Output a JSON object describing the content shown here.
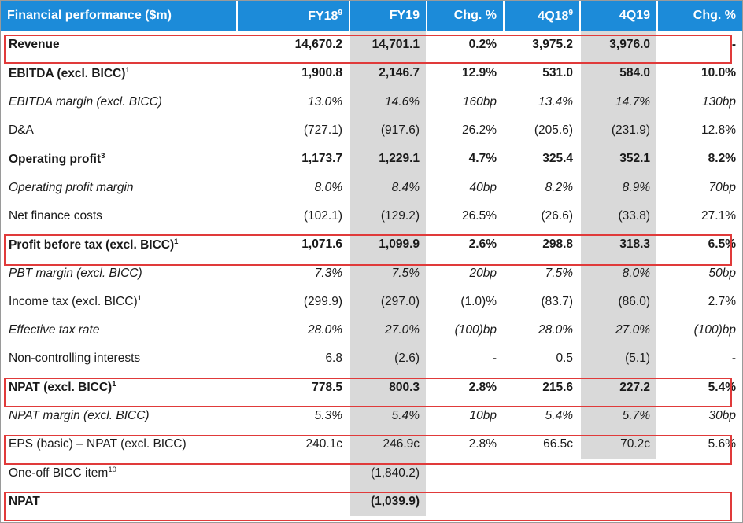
{
  "header": {
    "title": "Financial performance ($m)",
    "cols": [
      {
        "label": "FY18",
        "sup": "9"
      },
      {
        "label": "FY19",
        "sup": ""
      },
      {
        "label": "Chg. %",
        "sup": ""
      },
      {
        "label": "4Q18",
        "sup": "9"
      },
      {
        "label": "4Q19",
        "sup": ""
      },
      {
        "label": "Chg. %",
        "sup": ""
      }
    ]
  },
  "rows": [
    {
      "label": "Revenue",
      "sup": "",
      "style": "bold",
      "values": [
        "14,670.2",
        "14,701.1",
        "0.2%",
        "3,975.2",
        "3,976.0",
        "-"
      ]
    },
    {
      "label": "EBITDA (excl. BICC)",
      "sup": "1",
      "style": "bold",
      "values": [
        "1,900.8",
        "2,146.7",
        "12.9%",
        "531.0",
        "584.0",
        "10.0%"
      ]
    },
    {
      "label": "EBITDA margin (excl. BICC)",
      "sup": "",
      "style": "ital",
      "values": [
        "13.0%",
        "14.6%",
        "160bp",
        "13.4%",
        "14.7%",
        "130bp"
      ]
    },
    {
      "label": "D&A",
      "sup": "",
      "style": "",
      "values": [
        "(727.1)",
        "(917.6)",
        "26.2%",
        "(205.6)",
        "(231.9)",
        "12.8%"
      ]
    },
    {
      "label": "Operating profit",
      "sup": "3",
      "style": "bold",
      "values": [
        "1,173.7",
        "1,229.1",
        "4.7%",
        "325.4",
        "352.1",
        "8.2%"
      ]
    },
    {
      "label": "Operating profit margin",
      "sup": "",
      "style": "ital",
      "values": [
        "8.0%",
        "8.4%",
        "40bp",
        "8.2%",
        "8.9%",
        "70bp"
      ]
    },
    {
      "label": "Net finance costs",
      "sup": "",
      "style": "",
      "values": [
        "(102.1)",
        "(129.2)",
        "26.5%",
        "(26.6)",
        "(33.8)",
        "27.1%"
      ]
    },
    {
      "label": "Profit before tax (excl. BICC)",
      "sup": "1",
      "style": "bold",
      "values": [
        "1,071.6",
        "1,099.9",
        "2.6%",
        "298.8",
        "318.3",
        "6.5%"
      ]
    },
    {
      "label": "PBT margin (excl. BICC)",
      "sup": "",
      "style": "ital",
      "values": [
        "7.3%",
        "7.5%",
        "20bp",
        "7.5%",
        "8.0%",
        "50bp"
      ]
    },
    {
      "label": "Income tax (excl. BICC)",
      "sup": "1",
      "style": "",
      "values": [
        "(299.9)",
        "(297.0)",
        "(1.0)%",
        "(83.7)",
        "(86.0)",
        "2.7%"
      ]
    },
    {
      "label": "Effective tax rate",
      "sup": "",
      "style": "ital",
      "values": [
        "28.0%",
        "27.0%",
        "(100)bp",
        "28.0%",
        "27.0%",
        "(100)bp"
      ]
    },
    {
      "label": "Non-controlling interests",
      "sup": "",
      "style": "",
      "values": [
        "6.8",
        "(2.6)",
        "-",
        "0.5",
        "(5.1)",
        "-"
      ]
    },
    {
      "label": "NPAT (excl. BICC)",
      "sup": "1",
      "style": "bold",
      "values": [
        "778.5",
        "800.3",
        "2.8%",
        "215.6",
        "227.2",
        "5.4%"
      ]
    },
    {
      "label": "NPAT margin (excl. BICC)",
      "sup": "",
      "style": "ital",
      "values": [
        "5.3%",
        "5.4%",
        "10bp",
        "5.4%",
        "5.7%",
        "30bp"
      ]
    },
    {
      "label": "EPS (basic) – NPAT (excl. BICC)",
      "sup": "",
      "style": "",
      "values": [
        "240.1c",
        "246.9c",
        "2.8%",
        "66.5c",
        "70.2c",
        "5.6%"
      ]
    },
    {
      "label": "One-off BICC item",
      "sup": "10",
      "style": "",
      "values": [
        "",
        "(1,840.2)",
        "",
        "",
        "",
        ""
      ]
    },
    {
      "label": "NPAT",
      "sup": "",
      "style": "bold",
      "values": [
        "",
        "(1,039.9)",
        "",
        "",
        "",
        ""
      ]
    }
  ],
  "colors": {
    "header_bg": "#1c8bd9",
    "shade": "#d9d9d9",
    "highlight": "#e03a3a"
  }
}
